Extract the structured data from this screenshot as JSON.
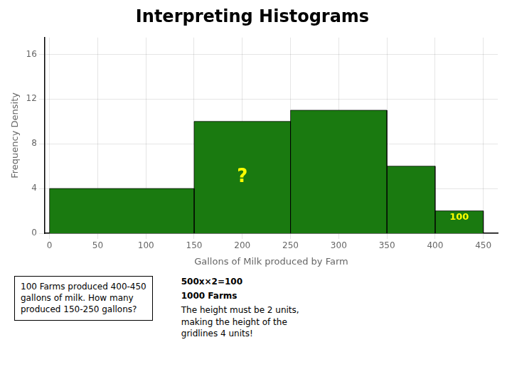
{
  "chart_data": {
    "type": "histogram",
    "title": "Interpreting Histograms",
    "xlabel": "Gallons of Milk produced by Farm",
    "ylabel": "Frequency Density",
    "bins": [
      0,
      150,
      250,
      350,
      400,
      450
    ],
    "values": [
      4,
      10,
      11,
      6,
      2
    ],
    "color": "#1a7a10",
    "xlim": [
      -5,
      465
    ],
    "xticks": [
      0,
      50,
      100,
      150,
      200,
      250,
      300,
      350,
      400,
      450
    ],
    "ylim": [
      0,
      17.5
    ],
    "yticks": [
      0,
      4,
      8,
      12,
      16
    ],
    "grid": true,
    "annotations": [
      {
        "text": "?",
        "x": 200,
        "y": 5.0,
        "color": "#ffff00"
      },
      {
        "text": "100",
        "x": 425,
        "y": 1.0,
        "color": "#ffff00"
      },
      {
        "text": "100 Farms produced 400-450\ngallons of milk. How many\nproduced 150-250 gallons?"
      },
      {
        "text": "500x×2=100"
      },
      {
        "text": "1000 Farms"
      },
      {
        "text": "The height must be 2 units,\nmaking the height of the\ngridlines 4 units!"
      }
    ]
  }
}
